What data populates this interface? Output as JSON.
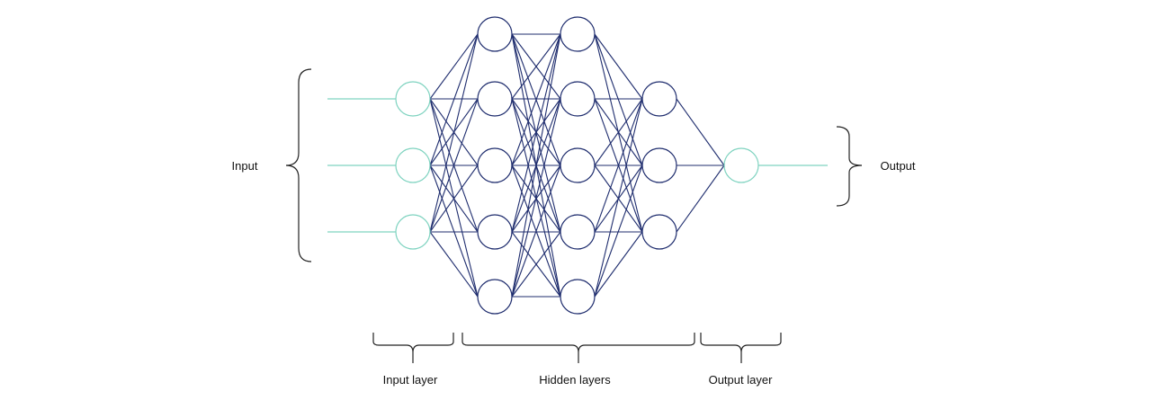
{
  "labels": {
    "input": "Input",
    "output": "Output",
    "input_layer": "Input layer",
    "hidden_layers": "Hidden layers",
    "output_layer": "Output layer"
  },
  "network": {
    "layers": [
      {
        "role": "input",
        "nodes": 3
      },
      {
        "role": "hidden",
        "nodes": 5
      },
      {
        "role": "hidden",
        "nodes": 5
      },
      {
        "role": "hidden",
        "nodes": 3
      },
      {
        "role": "output",
        "nodes": 1
      }
    ],
    "connectivity": "fully-connected"
  },
  "colors": {
    "io": "#7fd3c0",
    "hidden": "#1f2d6e",
    "bracket": "#222222"
  }
}
